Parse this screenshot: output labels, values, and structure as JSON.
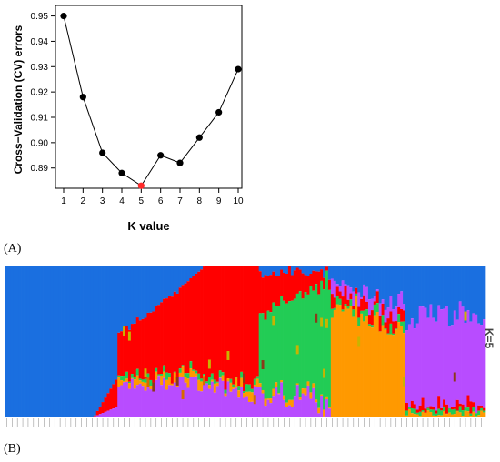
{
  "panel_labels": {
    "a": "(A)",
    "b": "(B)"
  },
  "chart_data": [
    {
      "type": "line",
      "title": "",
      "xlabel": "K value",
      "ylabel": "Cross−Validation (CV) errors",
      "x": [
        1,
        2,
        3,
        4,
        5,
        6,
        7,
        8,
        9,
        10
      ],
      "x_ticks": [
        "1",
        "2",
        "3",
        "4",
        "5",
        "6",
        "7",
        "8",
        "9",
        "10"
      ],
      "y": [
        0.95,
        0.918,
        0.896,
        0.888,
        0.883,
        0.895,
        0.892,
        0.902,
        0.912,
        0.929
      ],
      "y_ticks": [
        "0.89",
        "0.90",
        "0.91",
        "0.92",
        "0.93",
        "0.94",
        "0.95"
      ],
      "ylim": [
        0.882,
        0.952
      ],
      "highlight_index": 4,
      "colors": {
        "line": "#000000",
        "point": "#000000",
        "highlight": "#ff2a2a"
      }
    },
    {
      "type": "bar",
      "stacked": true,
      "label": "K=5",
      "n_samples": 180,
      "cluster_colors": [
        "#1a6fe0",
        "#ff0000",
        "#22cc55",
        "#ff9900",
        "#b84cff"
      ],
      "cluster_order": [
        "blue",
        "red",
        "green",
        "orange",
        "purple"
      ]
    }
  ]
}
